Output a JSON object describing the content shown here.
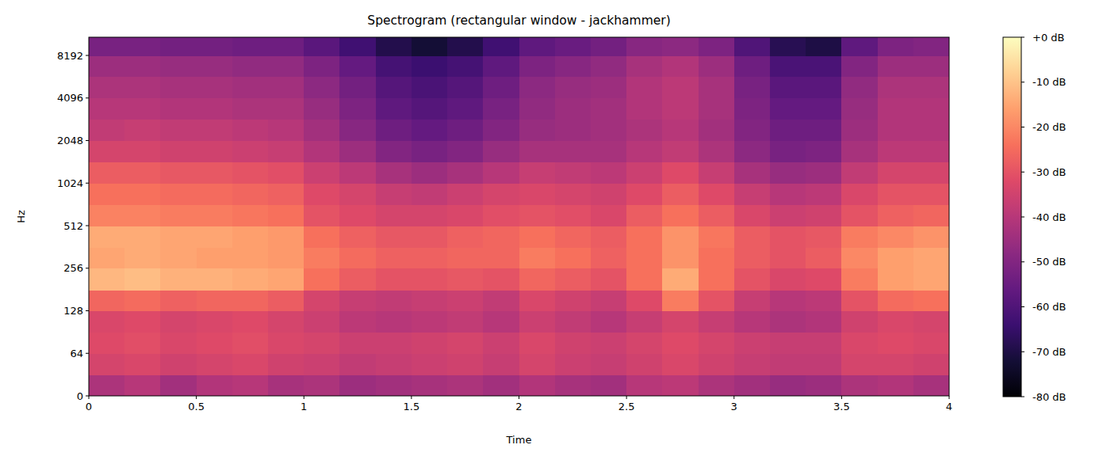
{
  "chart_data": {
    "type": "heatmap",
    "title": "Spectrogram (rectangular window - jackhammer)",
    "xlabel": "Time",
    "ylabel": "Hz",
    "x": [
      0,
      0.1667,
      0.3333,
      0.5,
      0.6667,
      0.8333,
      1,
      1.1667,
      1.3333,
      1.5,
      1.6667,
      1.8333,
      2,
      2.1667,
      2.3333,
      2.5,
      2.6667,
      2.8333,
      3,
      3.1667,
      3.3333,
      3.5,
      3.6667,
      3.8333,
      4
    ],
    "y": [
      0,
      32,
      64,
      90,
      128,
      180,
      256,
      360,
      512,
      724,
      1024,
      1448,
      2048,
      2896,
      4096,
      5793,
      8192,
      11025
    ],
    "values": [
      [
        -42,
        -40,
        -44,
        -41,
        -40,
        -43,
        -42,
        -45,
        -44,
        -43,
        -42,
        -44,
        -41,
        -43,
        -44,
        -40,
        -39,
        -42,
        -44,
        -46,
        -45,
        -42,
        -41,
        -43
      ],
      [
        -34,
        -33,
        -35,
        -34,
        -33,
        -35,
        -36,
        -38,
        -37,
        -36,
        -35,
        -37,
        -34,
        -36,
        -37,
        -35,
        -33,
        -35,
        -37,
        -38,
        -38,
        -34,
        -34,
        -35
      ],
      [
        -32,
        -31,
        -33,
        -32,
        -31,
        -33,
        -34,
        -36,
        -36,
        -35,
        -34,
        -36,
        -33,
        -35,
        -36,
        -34,
        -32,
        -34,
        -36,
        -37,
        -37,
        -33,
        -32,
        -33
      ],
      [
        -33,
        -32,
        -34,
        -33,
        -32,
        -34,
        -36,
        -39,
        -40,
        -39,
        -38,
        -40,
        -36,
        -38,
        -40,
        -37,
        -34,
        -37,
        -40,
        -42,
        -41,
        -35,
        -33,
        -34
      ],
      [
        -26,
        -25,
        -27,
        -26,
        -26,
        -28,
        -34,
        -37,
        -38,
        -37,
        -36,
        -38,
        -33,
        -35,
        -37,
        -32,
        -22,
        -30,
        -37,
        -40,
        -39,
        -30,
        -25,
        -24
      ],
      [
        -12,
        -11,
        -13,
        -13,
        -14,
        -15,
        -24,
        -28,
        -30,
        -30,
        -29,
        -30,
        -26,
        -28,
        -30,
        -24,
        -14,
        -24,
        -30,
        -33,
        -32,
        -22,
        -16,
        -15
      ],
      [
        -15,
        -14,
        -15,
        -16,
        -16,
        -17,
        -22,
        -25,
        -27,
        -27,
        -26,
        -26,
        -22,
        -24,
        -27,
        -24,
        -18,
        -24,
        -28,
        -30,
        -28,
        -20,
        -16,
        -15
      ],
      [
        -14,
        -14,
        -15,
        -15,
        -16,
        -17,
        -24,
        -27,
        -29,
        -29,
        -27,
        -26,
        -24,
        -26,
        -28,
        -24,
        -18,
        -23,
        -28,
        -30,
        -29,
        -22,
        -20,
        -18
      ],
      [
        -21,
        -21,
        -22,
        -22,
        -23,
        -24,
        -30,
        -32,
        -34,
        -34,
        -33,
        -31,
        -30,
        -31,
        -33,
        -28,
        -24,
        -28,
        -33,
        -36,
        -35,
        -30,
        -27,
        -26
      ],
      [
        -24,
        -24,
        -25,
        -25,
        -26,
        -27,
        -32,
        -34,
        -37,
        -38,
        -36,
        -34,
        -33,
        -34,
        -35,
        -32,
        -28,
        -32,
        -37,
        -40,
        -39,
        -33,
        -30,
        -30
      ],
      [
        -28,
        -28,
        -29,
        -29,
        -30,
        -31,
        -36,
        -39,
        -43,
        -45,
        -43,
        -40,
        -37,
        -38,
        -39,
        -36,
        -32,
        -37,
        -43,
        -46,
        -45,
        -38,
        -34,
        -34
      ],
      [
        -34,
        -34,
        -35,
        -35,
        -36,
        -37,
        -41,
        -45,
        -50,
        -52,
        -50,
        -46,
        -43,
        -43,
        -43,
        -40,
        -38,
        -42,
        -48,
        -52,
        -51,
        -43,
        -39,
        -39
      ],
      [
        -38,
        -37,
        -38,
        -38,
        -39,
        -40,
        -44,
        -49,
        -54,
        -56,
        -54,
        -50,
        -46,
        -45,
        -44,
        -42,
        -40,
        -44,
        -50,
        -54,
        -54,
        -45,
        -41,
        -41
      ],
      [
        -40,
        -40,
        -41,
        -41,
        -42,
        -42,
        -46,
        -51,
        -57,
        -59,
        -57,
        -52,
        -47,
        -45,
        -44,
        -41,
        -39,
        -43,
        -51,
        -56,
        -56,
        -46,
        -41,
        -41
      ],
      [
        -42,
        -42,
        -43,
        -43,
        -44,
        -44,
        -48,
        -53,
        -59,
        -61,
        -59,
        -54,
        -48,
        -46,
        -45,
        -41,
        -39,
        -43,
        -52,
        -58,
        -58,
        -47,
        -42,
        -42
      ],
      [
        -45,
        -45,
        -46,
        -46,
        -47,
        -47,
        -51,
        -56,
        -62,
        -64,
        -62,
        -57,
        -51,
        -49,
        -47,
        -43,
        -41,
        -45,
        -54,
        -61,
        -61,
        -50,
        -45,
        -45
      ],
      [
        -52,
        -52,
        -53,
        -53,
        -54,
        -54,
        -58,
        -63,
        -69,
        -72,
        -69,
        -63,
        -57,
        -55,
        -53,
        -49,
        -48,
        -51,
        -60,
        -68,
        -70,
        -57,
        -51,
        -50
      ]
    ],
    "xlim": [
      0,
      4
    ],
    "ylim": [
      0,
      11025
    ],
    "xticks": [
      0,
      0.5,
      1,
      1.5,
      2,
      2.5,
      3,
      3.5,
      4
    ],
    "yticks": [
      0,
      64,
      128,
      256,
      512,
      1024,
      2048,
      4096,
      8192
    ],
    "log": "y",
    "color": "magma",
    "colorbar": {
      "range": [
        -80,
        0
      ],
      "ticks": [
        {
          "value": 0,
          "label": "+0 dB"
        },
        {
          "value": -10,
          "label": "-10 dB"
        },
        {
          "value": -20,
          "label": "-20 dB"
        },
        {
          "value": -30,
          "label": "-30 dB"
        },
        {
          "value": -40,
          "label": "-40 dB"
        },
        {
          "value": -50,
          "label": "-50 dB"
        },
        {
          "value": -60,
          "label": "-60 dB"
        },
        {
          "value": -70,
          "label": "-70 dB"
        },
        {
          "value": -80,
          "label": "-80 dB"
        }
      ]
    }
  }
}
